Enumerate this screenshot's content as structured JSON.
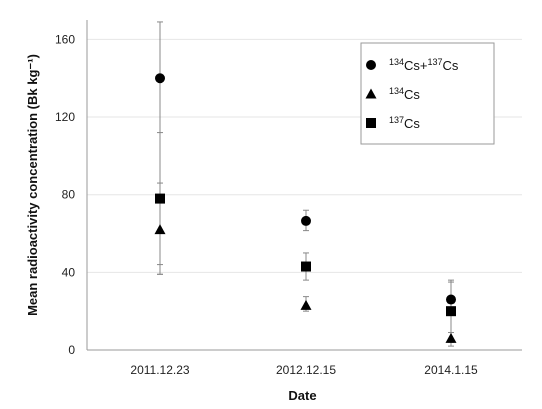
{
  "chart_data": {
    "type": "scatter",
    "categories": [
      "2011.12.23",
      "2012.12.15",
      "2014.1.15"
    ],
    "xlabel": "Date",
    "ylabel": "Mean radioactivity concentration (Bk kg⁻¹)",
    "ylim": [
      0,
      170
    ],
    "yticks": [
      0,
      40,
      80,
      120,
      160
    ],
    "grid": true,
    "legend_position": "top-right",
    "series": [
      {
        "name": "134Cs+137Cs",
        "legend": {
          "sup1": "134",
          "t1": "Cs+",
          "sup2": "137",
          "t2": "Cs"
        },
        "marker": "circle",
        "values": [
          140,
          66.5,
          26
        ],
        "error_low": [
          39,
          61.5,
          4
        ],
        "error_high": [
          169,
          72,
          36
        ]
      },
      {
        "name": "134Cs",
        "legend": {
          "sup1": "134",
          "t1": "Cs",
          "sup2": "",
          "t2": ""
        },
        "marker": "triangle",
        "values": [
          62,
          23,
          6
        ],
        "error_low": [
          44,
          20,
          2
        ],
        "error_high": [
          112,
          27.5,
          9
        ]
      },
      {
        "name": "137Cs",
        "legend": {
          "sup1": "137",
          "t1": "Cs",
          "sup2": "",
          "t2": ""
        },
        "marker": "square",
        "values": [
          78,
          43,
          20
        ],
        "error_low": [
          39,
          36,
          4
        ],
        "error_high": [
          86,
          50,
          35
        ]
      }
    ],
    "colors": {
      "marker": "#000000",
      "grid": "#e6e6e6",
      "axis": "#9a9a9a",
      "error": "#888888"
    }
  }
}
